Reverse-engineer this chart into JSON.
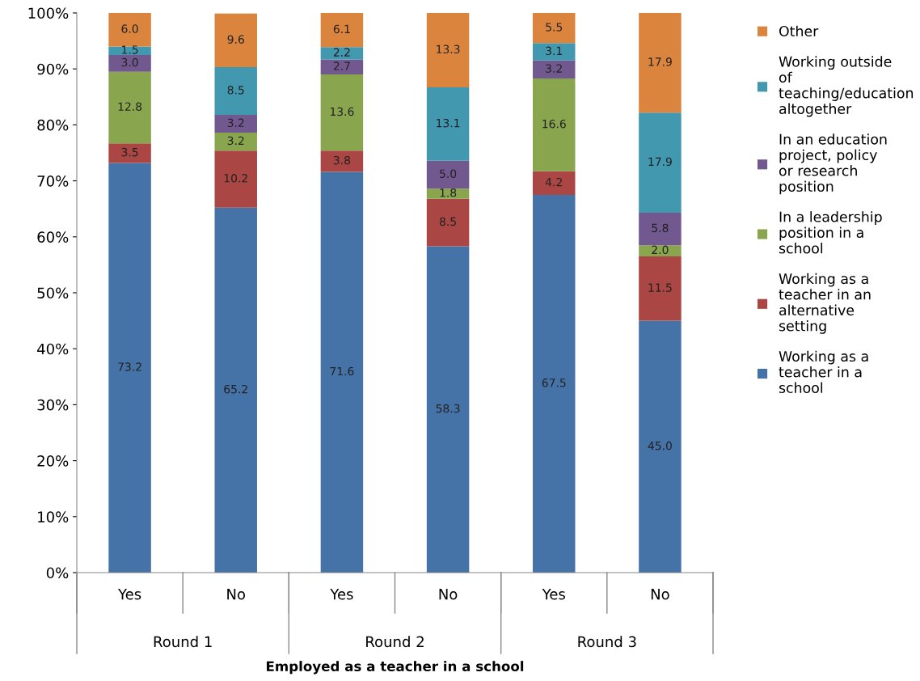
{
  "chart_data": {
    "type": "bar",
    "stacked": true,
    "xlabel": "Employed as a teacher in a school",
    "categories": [
      "Yes",
      "No",
      "Yes",
      "No",
      "Yes",
      "No"
    ],
    "annotations": [
      "Round 1",
      "Round 2",
      "Round 3"
    ],
    "series": [
      {
        "name": "Working as a teacher in a school",
        "color": "#4572a7",
        "values": [
          73.2,
          65.2,
          71.6,
          58.3,
          67.5,
          45.0
        ],
        "value_labels": [
          "73.2",
          "65.2",
          "71.6",
          "58.3",
          "67.5",
          "45.0"
        ]
      },
      {
        "name": "Working as a teacher in an alternative setting",
        "color": "#aa4643",
        "values": [
          3.5,
          10.2,
          3.8,
          8.5,
          4.2,
          11.5
        ],
        "value_labels": [
          "3.5",
          "10.2",
          "3.8",
          "8.5",
          "4.2",
          "11.5"
        ]
      },
      {
        "name": "In a leadership position in a school",
        "color": "#89a54e",
        "values": [
          12.8,
          3.2,
          13.6,
          1.8,
          16.6,
          2.0
        ],
        "value_labels": [
          "12.8",
          "3.2",
          "13.6",
          "1.8",
          "16.6",
          "2.0"
        ]
      },
      {
        "name": "In an education project, policy or research position",
        "color": "#71588f",
        "values": [
          3.0,
          3.2,
          2.7,
          5.0,
          3.2,
          5.8
        ],
        "value_labels": [
          "3.0",
          "3.2",
          "2.7",
          "5.0",
          "3.2",
          "5.8"
        ]
      },
      {
        "name": "Working outside of teaching/education altogether",
        "color": "#4198af",
        "values": [
          1.5,
          8.5,
          2.2,
          13.1,
          3.1,
          17.9
        ],
        "value_labels": [
          "1.5",
          "8.5",
          "2.2",
          "13.1",
          "3.1",
          "17.9"
        ]
      },
      {
        "name": "Other",
        "color": "#db843d",
        "values": [
          6.0,
          9.6,
          6.1,
          13.3,
          5.5,
          17.9
        ],
        "value_labels": [
          "6.0",
          "9.6",
          "6.1",
          "13.3",
          "5.5",
          "17.9"
        ]
      }
    ],
    "ylim": [
      0,
      100
    ],
    "yticks": [
      {
        "value": 0,
        "label": "0%"
      },
      {
        "value": 10,
        "label": "10%"
      },
      {
        "value": 20,
        "label": "20%"
      },
      {
        "value": 30,
        "label": "30%"
      },
      {
        "value": 40,
        "label": "40%"
      },
      {
        "value": 50,
        "label": "50%"
      },
      {
        "value": 60,
        "label": "60%"
      },
      {
        "value": 70,
        "label": "70%"
      },
      {
        "value": 80,
        "label": "80%"
      },
      {
        "value": 90,
        "label": "90%"
      },
      {
        "value": 100,
        "label": "100%"
      }
    ],
    "grid": false,
    "legend": "right"
  }
}
